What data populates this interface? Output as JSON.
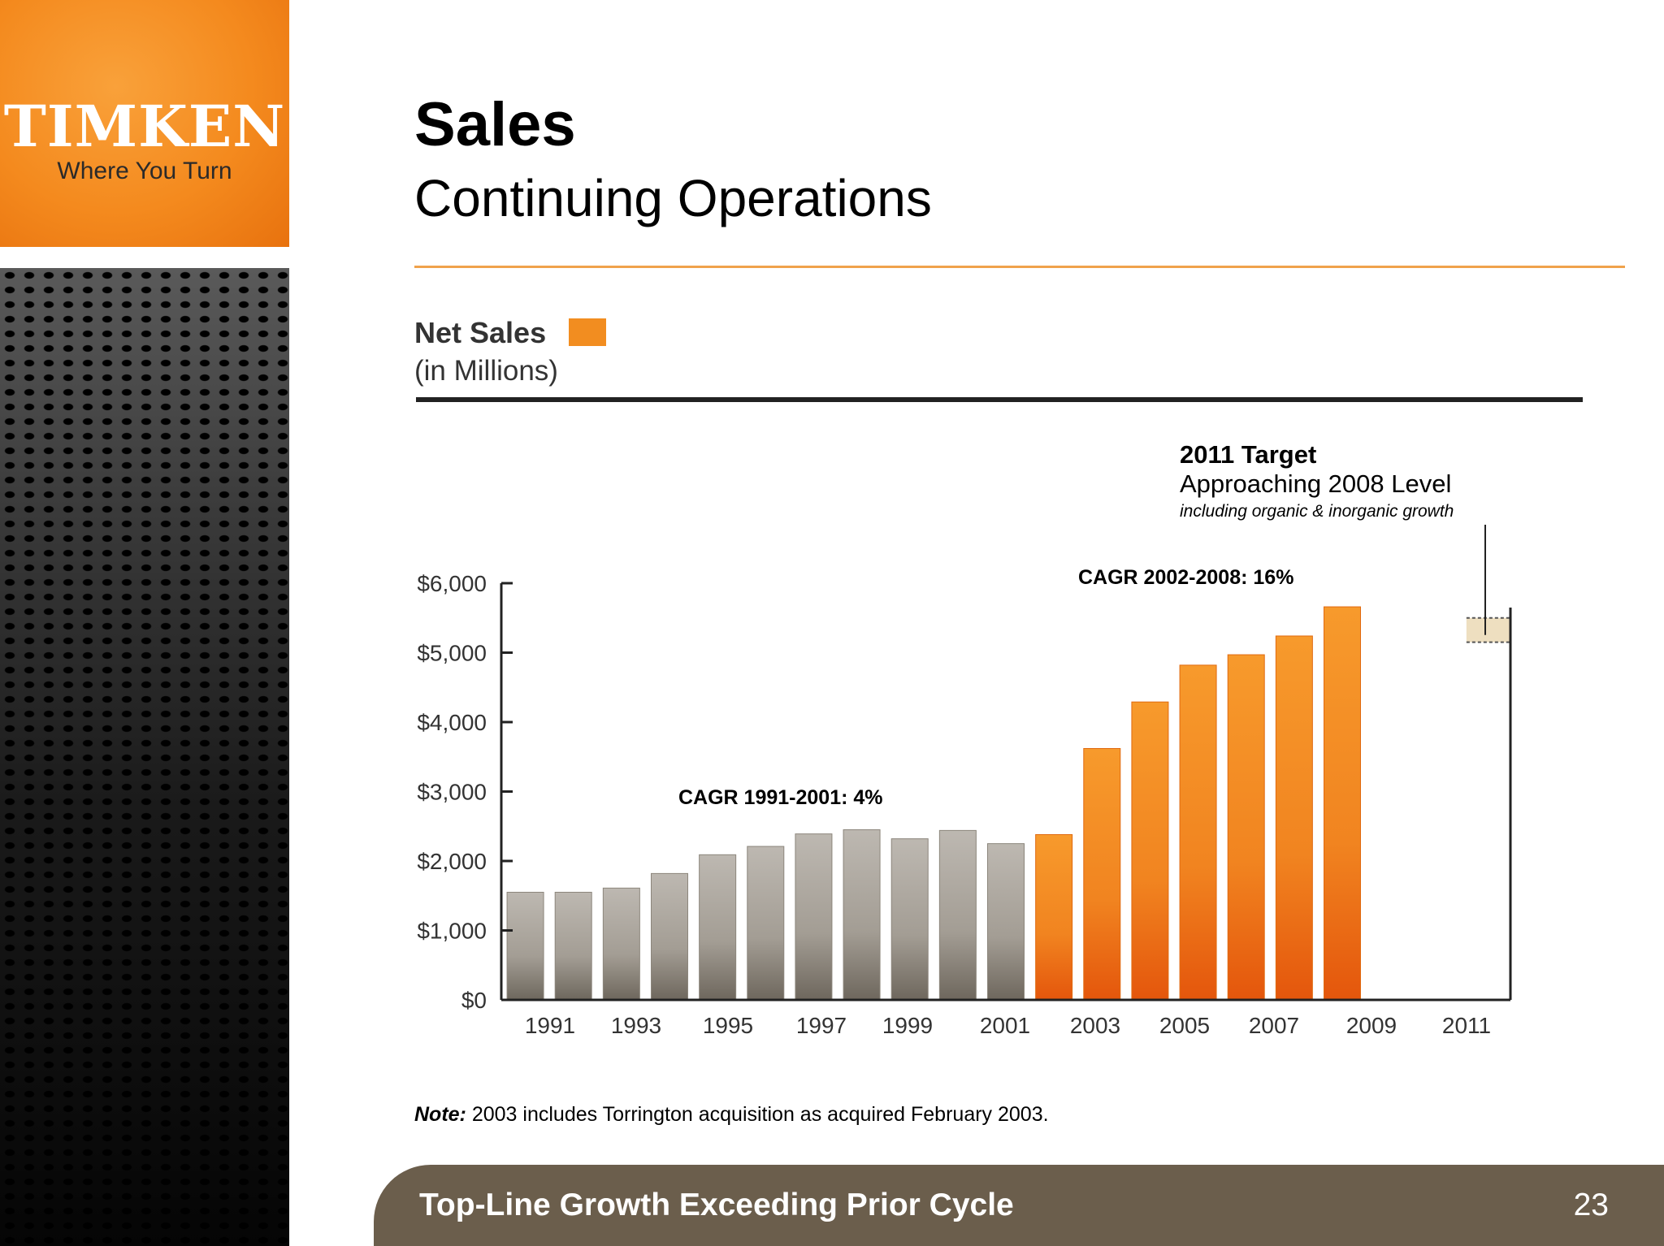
{
  "logo": {
    "wordmark": "TIMKEN",
    "tagline": "Where You Turn"
  },
  "slide": {
    "title": "Sales",
    "subtitle": "Continuing Operations",
    "note_label": "Note:",
    "note_text": "2003 includes Torrington acquisition as acquired February 2003.",
    "footer": "Top-Line Growth Exceeding Prior Cycle",
    "page_number": "23"
  },
  "legend": {
    "title": "Net Sales",
    "units": "(in Millions)"
  },
  "annotations": {
    "target_title": "2011 Target",
    "target_sub": "Approaching 2008 Level",
    "target_note": "including organic & inorganic growth",
    "cagr_early": "CAGR 1991-2001: 4%",
    "cagr_late": "CAGR 2002-2008: 16%"
  },
  "colors": {
    "orange": "#f28d20",
    "grey": "#a9a39a",
    "target": "#eedfc0",
    "footer": "#6b5e4c"
  },
  "chart_data": {
    "type": "bar",
    "title": "Net Sales",
    "ylabel": "(in Millions)",
    "ylim": [
      0,
      6000
    ],
    "yticks": [
      0,
      1000,
      2000,
      3000,
      4000,
      5000,
      6000
    ],
    "ytick_labels": [
      "$0",
      "$1,000",
      "$2,000",
      "$3,000",
      "$4,000",
      "$5,000",
      "$6,000"
    ],
    "xtick_labels": [
      "1991",
      "1993",
      "1995",
      "1997",
      "1999",
      "2001",
      "2003",
      "2005",
      "2007",
      "2009",
      "2011"
    ],
    "categories": [
      "1991",
      "1992",
      "1993",
      "1994",
      "1995",
      "1996",
      "1997",
      "1998",
      "1999",
      "2000",
      "2001",
      "2002",
      "2003",
      "2004",
      "2005",
      "2006",
      "2007",
      "2008",
      "2009",
      "2010",
      "2011"
    ],
    "series": [
      {
        "name": "1991-2001",
        "color": "grey",
        "values": [
          1550,
          1550,
          1610,
          1820,
          2090,
          2210,
          2390,
          2450,
          2320,
          2440,
          2250,
          null,
          null,
          null,
          null,
          null,
          null,
          null,
          null,
          null,
          null
        ]
      },
      {
        "name": "2002-2008",
        "color": "orange",
        "values": [
          null,
          null,
          null,
          null,
          null,
          null,
          null,
          null,
          null,
          null,
          null,
          2380,
          3620,
          4290,
          4820,
          4970,
          5240,
          5660,
          null,
          null,
          null
        ]
      }
    ],
    "target_range_2011": [
      5150,
      5500
    ]
  }
}
